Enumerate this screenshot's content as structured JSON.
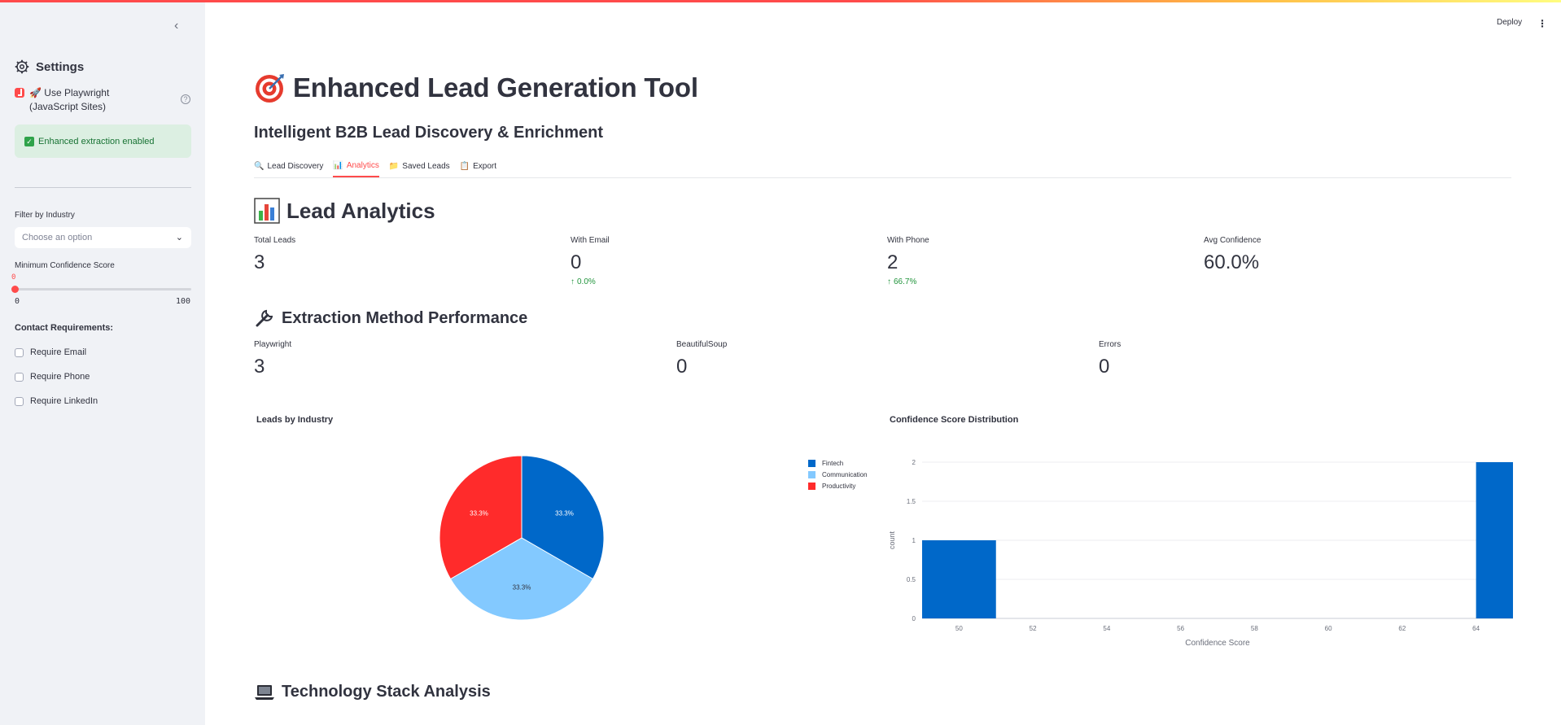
{
  "app": {
    "deploy_label": "Deploy",
    "menu_icon": "kebab-icon"
  },
  "sidebar": {
    "heading": "Settings",
    "playwright_label": "🚀 Use Playwright (JavaScript Sites)",
    "playwright_checked": true,
    "success_text": "Enhanced extraction enabled",
    "filter_label": "Filter by Industry",
    "filter_placeholder": "Choose an option",
    "confidence_label": "Minimum Confidence Score",
    "confidence_value": "0",
    "confidence_min": "0",
    "confidence_max": "100",
    "contact_heading": "Contact Requirements:",
    "requirements": [
      "Require Email",
      "Require Phone",
      "Require LinkedIn"
    ]
  },
  "header": {
    "title": "Enhanced Lead Generation Tool",
    "subtitle": "Intelligent B2B Lead Discovery & Enrichment"
  },
  "tabs": [
    {
      "icon": "🔍",
      "label": "Lead Discovery"
    },
    {
      "icon": "📊",
      "label": "Analytics"
    },
    {
      "icon": "📁",
      "label": "Saved Leads"
    },
    {
      "icon": "📋",
      "label": "Export"
    }
  ],
  "analytics": {
    "heading": "Lead Analytics",
    "metrics": [
      {
        "label": "Total Leads",
        "value": "3",
        "delta": ""
      },
      {
        "label": "With Email",
        "value": "0",
        "delta": "0.0%"
      },
      {
        "label": "With Phone",
        "value": "2",
        "delta": "66.7%"
      },
      {
        "label": "Avg Confidence",
        "value": "60.0%",
        "delta": ""
      }
    ]
  },
  "extraction": {
    "heading": "Extraction Method Performance",
    "metrics": [
      {
        "label": "Playwright",
        "value": "3"
      },
      {
        "label": "BeautifulSoup",
        "value": "0"
      },
      {
        "label": "Errors",
        "value": "0"
      }
    ]
  },
  "tech": {
    "heading": "Technology Stack Analysis"
  },
  "colors": {
    "accent": "#ff4b4b",
    "blue": "#0068c9",
    "light_blue": "#83c9ff",
    "red": "#ff2b2b"
  },
  "chart_data": [
    {
      "type": "pie",
      "title": "Leads by Industry",
      "categories": [
        "Fintech",
        "Communication",
        "Productivity"
      ],
      "values": [
        1,
        1,
        1
      ],
      "labels": [
        "33.3%",
        "33.3%",
        "33.3%"
      ],
      "colors": [
        "#0068c9",
        "#83c9ff",
        "#ff2b2b"
      ],
      "legend": "right"
    },
    {
      "type": "bar",
      "title": "Confidence Score Distribution",
      "xlabel": "Confidence Score",
      "ylabel": "count",
      "x": [
        50,
        65
      ],
      "values": [
        1,
        2
      ],
      "xlim": [
        49,
        65
      ],
      "ylim": [
        0,
        2
      ],
      "xticks": [
        "50",
        "52",
        "54",
        "56",
        "58",
        "60",
        "62",
        "64"
      ],
      "yticks": [
        "0",
        "0.5",
        "1",
        "1.5",
        "2"
      ],
      "color": "#0068c9",
      "grid": true
    }
  ]
}
